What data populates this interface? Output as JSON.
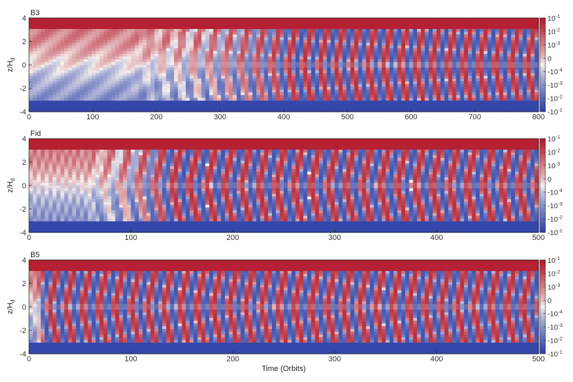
{
  "chart_data": [
    {
      "type": "heatmap",
      "panel_label": "B3",
      "ylabel": "z/H",
      "ylabel_sub": "d",
      "xlim": [
        0,
        800
      ],
      "ylim": [
        -4,
        4
      ],
      "x_ticks": [
        "0",
        "100",
        "200",
        "300",
        "400",
        "500",
        "600",
        "700",
        "800"
      ],
      "y_ticks": [
        "-4",
        "-2",
        "0",
        "2",
        "4"
      ],
      "colorbar_ticks": [
        "10",
        "10",
        "10",
        "0",
        "-10",
        "-10",
        "-10"
      ],
      "colorbar_exponents": [
        "-1",
        "-2",
        "-3",
        "",
        "-4",
        "-3",
        "-2"
      ],
      "colorbar_extra_exponent": "-1",
      "onset_orbit": 300,
      "period_orbits": 25
    },
    {
      "type": "heatmap",
      "panel_label": "Fid",
      "ylabel": "z/H",
      "ylabel_sub": "d",
      "xlim": [
        0,
        500
      ],
      "ylim": [
        -4,
        4
      ],
      "x_ticks": [
        "0",
        "100",
        "200",
        "300",
        "400",
        "500"
      ],
      "y_ticks": [
        "-4",
        "-2",
        "0",
        "2",
        "4"
      ],
      "colorbar_ticks": [
        "10",
        "10",
        "10",
        "0",
        "-10",
        "-10",
        "-10"
      ],
      "colorbar_exponents": [
        "-1",
        "-2",
        "-3",
        "",
        "-4",
        "-3",
        "-2"
      ],
      "colorbar_extra_exponent": "-1",
      "onset_orbit": 100,
      "period_orbits": 17
    },
    {
      "type": "heatmap",
      "panel_label": "B5",
      "ylabel": "z/H",
      "ylabel_sub": "d",
      "xlabel": "Time (Orbits)",
      "xlim": [
        0,
        500
      ],
      "ylim": [
        -4,
        4
      ],
      "x_ticks": [
        "0",
        "100",
        "200",
        "300",
        "400",
        "500"
      ],
      "y_ticks": [
        "-4",
        "-2",
        "0",
        "2",
        "4"
      ],
      "colorbar_ticks": [
        "10",
        "10",
        "10",
        "0",
        "-10",
        "-10",
        "-10"
      ],
      "colorbar_exponents": [
        "-1",
        "-2",
        "-3",
        "",
        "-4",
        "-3",
        "-2"
      ],
      "colorbar_extra_exponent": "-1",
      "onset_orbit": 10,
      "period_orbits": 16
    }
  ],
  "colors": {
    "positive": "#b2182b",
    "negative": "#2c3fa8",
    "zero": "#f5f0ee"
  }
}
